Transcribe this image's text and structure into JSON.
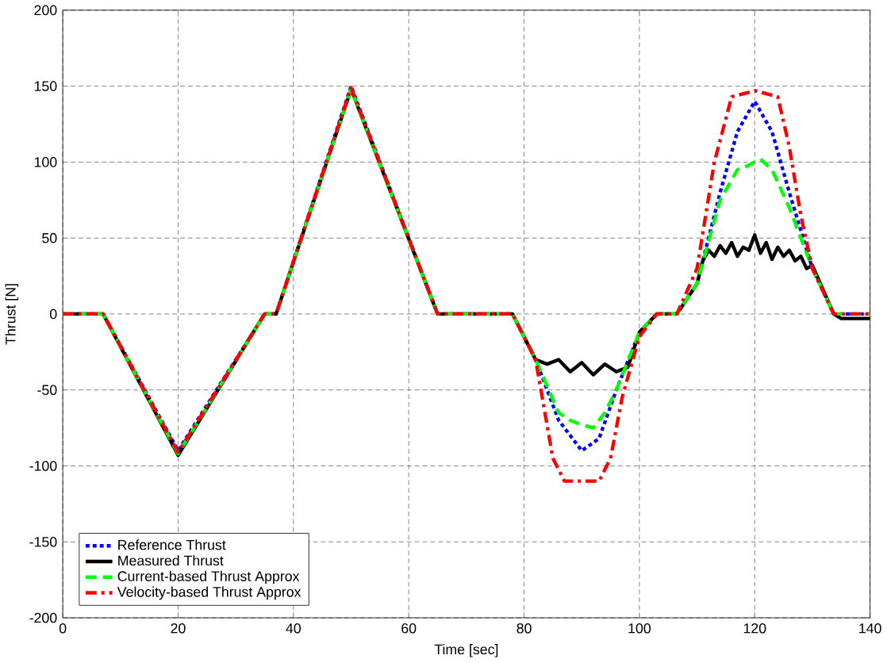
{
  "chart_data": {
    "type": "line",
    "xlabel": "Time [sec]",
    "ylabel": "Thrust [N]",
    "xlim": [
      0,
      140
    ],
    "ylim": [
      -200,
      200
    ],
    "xticks": [
      0,
      20,
      40,
      60,
      80,
      100,
      120,
      140
    ],
    "yticks": [
      -200,
      -150,
      -100,
      -50,
      0,
      50,
      100,
      150,
      200
    ],
    "grid": true,
    "legend": "bottom left",
    "series": [
      {
        "name": "Reference Thrust",
        "color": "#0000ff",
        "line_style": "dotted",
        "x": [
          0,
          7,
          20,
          35,
          37,
          50,
          65,
          78,
          82,
          86,
          90,
          93,
          96,
          100,
          103,
          106.5,
          110,
          114,
          117,
          120,
          123,
          126,
          130,
          133.7,
          140
        ],
        "values": [
          0,
          0,
          -90,
          0,
          0,
          150,
          0,
          0,
          -30,
          -70,
          -90,
          -82,
          -50,
          -12,
          0,
          0,
          20,
          80,
          120,
          140,
          120,
          80,
          30,
          0,
          0
        ]
      },
      {
        "name": "Measured Thrust",
        "color": "#000000",
        "line_style": "solid",
        "x": [
          0,
          7,
          20,
          35,
          37,
          50,
          65,
          78,
          80,
          82,
          84,
          86,
          88,
          90,
          92,
          94,
          96,
          98,
          100,
          103,
          106.5,
          110,
          111,
          112,
          113,
          114,
          115,
          116,
          117,
          118,
          119,
          120,
          121,
          122,
          123,
          124,
          125,
          126,
          127,
          128,
          129,
          130,
          133.7,
          135,
          140
        ],
        "values": [
          0,
          0,
          -93,
          0,
          0,
          148,
          0,
          0,
          -15,
          -30,
          -33,
          -30,
          -38,
          -32,
          -40,
          -33,
          -38,
          -35,
          -12,
          0,
          0,
          20,
          35,
          42,
          38,
          45,
          40,
          47,
          38,
          44,
          42,
          52,
          40,
          47,
          36,
          44,
          38,
          42,
          35,
          38,
          30,
          32,
          0,
          -3,
          -3
        ]
      },
      {
        "name": "Current-based Thrust Approx",
        "color": "#00ff00",
        "line_style": "dashed",
        "x": [
          0,
          7,
          20,
          35,
          37,
          50,
          65,
          78,
          82,
          86,
          88,
          90,
          92,
          94,
          96,
          100,
          103,
          106.5,
          110,
          114,
          117,
          119,
          121,
          123,
          126,
          130,
          133.7,
          140
        ],
        "values": [
          0,
          0,
          -92,
          0,
          0,
          148,
          0,
          0,
          -30,
          -65,
          -70,
          -73,
          -75,
          -65,
          -50,
          -12,
          0,
          0,
          20,
          75,
          95,
          98,
          102,
          95,
          70,
          30,
          0,
          0
        ]
      },
      {
        "name": "Velocity-based Thrust Approx",
        "color": "#ff0000",
        "line_style": "dashdot",
        "x": [
          0,
          7,
          20,
          35,
          37,
          50,
          65,
          78,
          82,
          85,
          87,
          93,
          95,
          97,
          100,
          103,
          106.5,
          110,
          113,
          116,
          120,
          124,
          126,
          128,
          130,
          133.7,
          140
        ],
        "values": [
          0,
          0,
          -91,
          0,
          0,
          149,
          0,
          0,
          -30,
          -95,
          -110,
          -110,
          -95,
          -55,
          -15,
          0,
          0,
          30,
          100,
          143,
          147,
          143,
          110,
          65,
          30,
          0,
          0
        ]
      }
    ]
  }
}
